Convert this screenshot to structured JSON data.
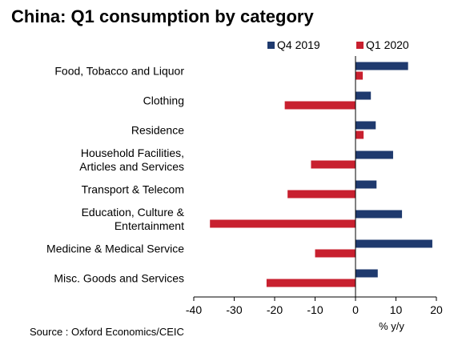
{
  "title": "China: Q1 consumption by category",
  "source": "Source : Oxford Economics/CEIC",
  "colors": {
    "q4_2019": "#1f3a6e",
    "q1_2020": "#c8202f"
  },
  "chart_data": {
    "type": "bar",
    "orientation": "horizontal",
    "title": "China: Q1 consumption by category",
    "xlabel": "% y/y",
    "ylabel": "",
    "xlim": [
      -40,
      20
    ],
    "xticks": [
      "-40",
      "-30",
      "-20",
      "-10",
      "0",
      "10",
      "20"
    ],
    "grid": false,
    "legend_position": "top-right",
    "categories": [
      [
        "Food, Tobacco and Liquor"
      ],
      [
        "Clothing"
      ],
      [
        "Residence"
      ],
      [
        "Household Facilities,",
        "Articles and Services"
      ],
      [
        "Transport & Telecom"
      ],
      [
        "Education, Culture &",
        "Entertainment"
      ],
      [
        "Medicine & Medical Service"
      ],
      [
        "Misc. Goods and Services"
      ]
    ],
    "series": [
      {
        "name": "Q4 2019",
        "values": [
          13.0,
          3.8,
          5.0,
          9.3,
          5.2,
          11.5,
          19.0,
          5.5
        ]
      },
      {
        "name": "Q1 2020",
        "values": [
          1.8,
          -17.5,
          2.0,
          -11.0,
          -16.8,
          -36.0,
          -10.0,
          -22.0
        ]
      }
    ]
  }
}
